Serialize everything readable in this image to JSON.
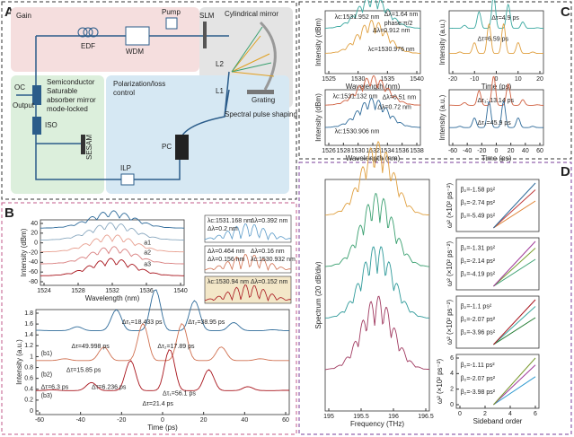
{
  "labels": {
    "a": "A",
    "b": "B",
    "c": "C",
    "d": "D"
  },
  "diagram": {
    "gain": "Gain",
    "edf": "EDF",
    "wdm": "WDM",
    "pump": "Pump",
    "slm": "SLM",
    "cyl": "Cylindrical mirror",
    "l2": "L2",
    "l1": "L1",
    "grating": "Grating",
    "shaping": "Spectral pulse shaping",
    "oc": "OC",
    "output": "Output",
    "sesam_text": [
      "Semiconductor",
      "Saturable",
      "absorber mirror",
      "mode-locked"
    ],
    "iso": "ISO",
    "sesam": "SESAM",
    "pol": [
      "Polarization/loss",
      "control"
    ],
    "pc": "PC",
    "ilp": "ILP"
  },
  "plots": [
    {
      "ylabel": "Intensity (dBm)",
      "xlabel": "Wavelength (nm)",
      "xticks": [
        "1524",
        "1528",
        "1532",
        "1536",
        "1540"
      ],
      "yticks": [
        "-80",
        "-60",
        "-40",
        "-20",
        "0",
        "20",
        "40"
      ],
      "notes": [
        "a1",
        "a2",
        "a3"
      ]
    },
    {
      "ylabel": "Intensity (a.u.)",
      "xlabel": "Time (ps)",
      "xticks": [
        "-60",
        "-40",
        "-20",
        "0",
        "20",
        "40",
        "60"
      ],
      "yticks": [
        "0",
        "0.2",
        "0.4",
        "0.6",
        "0.8",
        "1",
        "1.2",
        "1.4",
        "1.6",
        "1.8"
      ],
      "notes": [
        "(b1)",
        "(b2)",
        "(b3)",
        "Δτ₁=18.433 ps",
        "Δτ₂=38.95 ps",
        "Δτ=49.998 ps",
        "Δτ₂=17.89 ps",
        "Δτ=15.85 ps",
        "Δτ=6.3 ps",
        "Δτ=6.236 ps",
        "Δτ₁=56.1 ps",
        "Δτ=21.4 ps"
      ]
    },
    {
      "ylabel": "Intensity (dBm)",
      "xlabel": "Wavelength (nm)",
      "xticks": [
        "1525",
        "1530",
        "1535",
        "1540"
      ],
      "yticks": [],
      "notes": [
        "λc:1531.952 nm",
        "Δλ=1.64 nm",
        "phase:π/2",
        "Δλ=0.912 nm",
        "λc=1530.976 nm"
      ]
    },
    {
      "ylabel": "Intensity (a.u.)",
      "xlabel": "Time (ps)",
      "xticks": [
        "-20",
        "-10",
        "0",
        "10",
        "20"
      ],
      "yticks": [],
      "notes": [
        "Δτ=4.9 ps",
        "Δτ=6.59 ps"
      ]
    },
    {
      "ylabel": "Intensity (dBm)",
      "xlabel": "Wavelength (nm)",
      "xticks": [
        "1526",
        "1528",
        "1530",
        "1532",
        "1534",
        "1536",
        "1538"
      ],
      "yticks": [],
      "notes": [
        "λc:1531.132 nm",
        "Δλ=0.51 nm",
        "Δλ=0.72 nm",
        "λc:1530.906 nm"
      ]
    },
    {
      "ylabel": "Intensity (a.u.)",
      "xlabel": "Time (ps)",
      "xticks": [
        "-60",
        "-40",
        "-20",
        "0",
        "20",
        "40",
        "60"
      ],
      "yticks": [],
      "notes": [
        "Δτ₁: 13.14 ps",
        "Δτ₂=45.9 ps"
      ]
    },
    {
      "ylabel": "Spectrum (20 dB/div)",
      "xlabel": "Frequency (THz)",
      "xticks": [
        "195",
        "195.5",
        "196",
        "196.5"
      ],
      "yticks": [],
      "notes": []
    },
    {
      "ylabel": "ω² (×10² ps⁻²)",
      "xlabel": "",
      "xticks": [],
      "yticks": [],
      "notes": [
        "β₂=-1.58 ps²",
        "β₂=-2.74 ps²",
        "β₂=-5.49 ps²"
      ]
    },
    {
      "ylabel": "ω² (×10² ps⁻²)",
      "xlabel": "",
      "xticks": [],
      "yticks": [],
      "notes": [
        "β₂=-1.31 ps²",
        "β₂=-2.14 ps²",
        "β₂=-4.19 ps²"
      ]
    },
    {
      "ylabel": "ω² (×10² ps⁻²)",
      "xlabel": "",
      "xticks": [],
      "yticks": [],
      "notes": [
        "β₂=-1.1 ps²",
        "β₂=-2.07 ps²",
        "β₂=-3.96 ps²"
      ]
    },
    {
      "ylabel": "ω² (×10² ps⁻²)",
      "xlabel": "Sideband order",
      "xticks": [
        "0",
        "2",
        "4",
        "6"
      ],
      "yticks": [
        "0",
        "2",
        "4",
        "6"
      ],
      "notes": [
        "β₂=-1.11 ps²",
        "β₂=-2.07 ps²",
        "β₂=-3.98 ps²"
      ]
    }
  ],
  "insets": [
    [
      "λc:1531.168 nm",
      "Δλ=0.392 nm",
      "Δλ=0.2 nm"
    ],
    [
      "Δλ=0.464 nm",
      "Δλ=0.16 nm",
      "Δλ=0.156 nm",
      "λc:1530.932 nm"
    ],
    [
      "λc:1530.94 nm",
      "Δλ=0.152 nm"
    ]
  ]
}
